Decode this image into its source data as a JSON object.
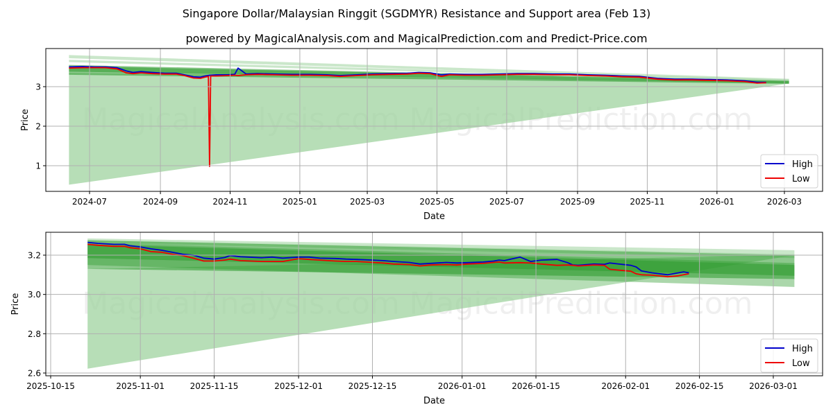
{
  "header": {
    "title": "Singapore Dollar/Malaysian Ringgit (SGDMYR) Resistance and Support area (Feb 13)",
    "subtitle": "powered by MagicalAnalysis.com and MagicalPrediction.com and Predict-Price.com"
  },
  "watermarks": [
    "MagicalAnalysis.com",
    "MagicalPrediction.com"
  ],
  "colors": {
    "high": "#0000cc",
    "low": "#ee0000",
    "band_dark": "#2e9a2e",
    "band_light": "#9fd39f",
    "grid": "#b0b0b0"
  },
  "chart_data": [
    {
      "type": "line",
      "title": "",
      "xlabel": "Date",
      "ylabel": "Price",
      "grid": true,
      "legend_position": "lower right",
      "legend": [
        "High",
        "Low"
      ],
      "xticks": [
        "2024-07",
        "2024-09",
        "2024-11",
        "2025-01",
        "2025-03",
        "2025-05",
        "2025-07",
        "2025-09",
        "2025-11",
        "2026-01",
        "2026-03"
      ],
      "yticks": [
        "1",
        "2",
        "3"
      ],
      "ylim": [
        0.35,
        3.95
      ],
      "xrange": [
        "2024-05-20",
        "2026-04-04"
      ],
      "series": [
        {
          "name": "High",
          "x": [
            "2024-06-13",
            "2024-06-25",
            "2024-07-05",
            "2024-07-15",
            "2024-07-25",
            "2024-08-02",
            "2024-08-08",
            "2024-08-15",
            "2024-08-25",
            "2024-09-05",
            "2024-09-15",
            "2024-09-22",
            "2024-09-30",
            "2024-10-06",
            "2024-10-10",
            "2024-10-14",
            "2024-10-20",
            "2024-10-30",
            "2024-11-05",
            "2024-11-08",
            "2024-11-15",
            "2024-11-25",
            "2024-12-10",
            "2024-12-25",
            "2025-01-10",
            "2025-01-25",
            "2025-02-05",
            "2025-02-20",
            "2025-03-05",
            "2025-03-20",
            "2025-04-05",
            "2025-04-15",
            "2025-04-25",
            "2025-05-05",
            "2025-05-12",
            "2025-05-25",
            "2025-06-10",
            "2025-06-25",
            "2025-07-10",
            "2025-07-25",
            "2025-08-10",
            "2025-08-25",
            "2025-09-10",
            "2025-09-25",
            "2025-10-10",
            "2025-10-25",
            "2025-11-10",
            "2025-11-25",
            "2025-12-10",
            "2025-12-25",
            "2026-01-10",
            "2026-01-25",
            "2026-02-05",
            "2026-02-13"
          ],
          "values": [
            3.5,
            3.51,
            3.5,
            3.5,
            3.48,
            3.4,
            3.36,
            3.38,
            3.36,
            3.34,
            3.34,
            3.3,
            3.25,
            3.24,
            3.27,
            3.29,
            3.3,
            3.3,
            3.31,
            3.47,
            3.32,
            3.33,
            3.32,
            3.31,
            3.31,
            3.3,
            3.28,
            3.3,
            3.32,
            3.33,
            3.34,
            3.36,
            3.35,
            3.3,
            3.32,
            3.31,
            3.31,
            3.32,
            3.33,
            3.33,
            3.32,
            3.32,
            3.3,
            3.29,
            3.27,
            3.26,
            3.21,
            3.19,
            3.19,
            3.18,
            3.17,
            3.15,
            3.11,
            3.11
          ]
        },
        {
          "name": "Low",
          "x": [
            "2024-06-13",
            "2024-06-25",
            "2024-07-05",
            "2024-07-15",
            "2024-07-25",
            "2024-08-02",
            "2024-08-08",
            "2024-08-15",
            "2024-08-25",
            "2024-09-05",
            "2024-09-15",
            "2024-09-22",
            "2024-09-30",
            "2024-10-06",
            "2024-10-10",
            "2024-10-13",
            "2024-10-14",
            "2024-10-15",
            "2024-10-20",
            "2024-10-30",
            "2024-11-05",
            "2024-11-08",
            "2024-11-15",
            "2024-11-25",
            "2024-12-10",
            "2024-12-25",
            "2025-01-10",
            "2025-01-25",
            "2025-02-05",
            "2025-02-20",
            "2025-03-05",
            "2025-03-20",
            "2025-04-05",
            "2025-04-15",
            "2025-04-25",
            "2025-05-05",
            "2025-05-12",
            "2025-05-25",
            "2025-06-10",
            "2025-06-25",
            "2025-07-10",
            "2025-07-25",
            "2025-08-10",
            "2025-08-25",
            "2025-09-10",
            "2025-09-25",
            "2025-10-10",
            "2025-10-25",
            "2025-11-10",
            "2025-11-25",
            "2025-12-10",
            "2025-12-25",
            "2026-01-10",
            "2026-01-25",
            "2026-02-05",
            "2026-02-13"
          ],
          "values": [
            3.47,
            3.48,
            3.48,
            3.48,
            3.45,
            3.35,
            3.33,
            3.35,
            3.33,
            3.32,
            3.32,
            3.28,
            3.22,
            3.21,
            3.24,
            3.26,
            0.98,
            3.27,
            3.27,
            3.28,
            3.29,
            3.28,
            3.3,
            3.31,
            3.3,
            3.29,
            3.29,
            3.28,
            3.26,
            3.28,
            3.3,
            3.31,
            3.32,
            3.34,
            3.33,
            3.26,
            3.3,
            3.29,
            3.29,
            3.3,
            3.31,
            3.31,
            3.3,
            3.3,
            3.28,
            3.27,
            3.25,
            3.24,
            3.19,
            3.17,
            3.17,
            3.16,
            3.15,
            3.13,
            3.09,
            3.1
          ]
        }
      ],
      "bands": [
        {
          "kind": "support_wedge",
          "start": {
            "x": "2024-06-13",
            "top": 3.35,
            "bottom": 0.52
          },
          "end": {
            "x": "2026-03-05",
            "top": 3.12,
            "bottom": 3.08
          },
          "color": "#9fd39f",
          "opacity": 0.75
        },
        {
          "kind": "resistance",
          "start": {
            "x": "2024-06-13",
            "top": 3.8,
            "bottom": 3.72
          },
          "end": {
            "x": "2026-03-05",
            "top": 3.2,
            "bottom": 3.15
          },
          "color": "#9fd39f",
          "opacity": 0.55
        },
        {
          "kind": "resistance",
          "start": {
            "x": "2024-06-13",
            "top": 3.68,
            "bottom": 3.62
          },
          "end": {
            "x": "2026-03-05",
            "top": 3.18,
            "bottom": 3.13
          },
          "color": "#9fd39f",
          "opacity": 0.55
        },
        {
          "kind": "core",
          "start": {
            "x": "2024-06-13",
            "top": 3.55,
            "bottom": 3.3
          },
          "end": {
            "x": "2026-03-05",
            "top": 3.15,
            "bottom": 3.07
          },
          "color": "#2e9a2e",
          "opacity": 0.55
        },
        {
          "kind": "core",
          "start": {
            "x": "2024-06-13",
            "top": 3.52,
            "bottom": 3.38
          },
          "end": {
            "x": "2026-03-05",
            "top": 3.14,
            "bottom": 3.09
          },
          "color": "#2e9a2e",
          "opacity": 0.55
        }
      ]
    },
    {
      "type": "line",
      "title": "",
      "xlabel": "Date",
      "ylabel": "Price",
      "grid": true,
      "legend_position": "lower right",
      "legend": [
        "High",
        "Low"
      ],
      "xticks": [
        "2025-10-15",
        "2025-11-01",
        "2025-11-15",
        "2025-12-01",
        "2025-12-15",
        "2026-01-01",
        "2026-01-15",
        "2026-02-01",
        "2026-02-15",
        "2026-03-01"
      ],
      "yticks": [
        "2.6",
        "2.8",
        "3.0",
        "3.2"
      ],
      "ylim": [
        2.585,
        3.315
      ],
      "xrange": [
        "2025-10-14",
        "2026-03-10"
      ],
      "series": [
        {
          "name": "High",
          "x": [
            "2025-10-22",
            "2025-10-24",
            "2025-10-27",
            "2025-10-29",
            "2025-10-30",
            "2025-11-01",
            "2025-11-03",
            "2025-11-05",
            "2025-11-07",
            "2025-11-09",
            "2025-11-11",
            "2025-11-13",
            "2025-11-15",
            "2025-11-17",
            "2025-11-18",
            "2025-11-20",
            "2025-11-24",
            "2025-11-26",
            "2025-11-28",
            "2025-12-01",
            "2025-12-03",
            "2025-12-05",
            "2025-12-08",
            "2025-12-10",
            "2025-12-12",
            "2025-12-15",
            "2025-12-17",
            "2025-12-19",
            "2025-12-22",
            "2025-12-24",
            "2025-12-26",
            "2025-12-29",
            "2025-12-31",
            "2026-01-02",
            "2026-01-05",
            "2026-01-07",
            "2026-01-08",
            "2026-01-09",
            "2026-01-12",
            "2026-01-14",
            "2026-01-16",
            "2026-01-19",
            "2026-01-21",
            "2026-01-22",
            "2026-01-23",
            "2026-01-26",
            "2026-01-28",
            "2026-01-29",
            "2026-02-02",
            "2026-02-03",
            "2026-02-04",
            "2026-02-06",
            "2026-02-09",
            "2026-02-11",
            "2026-02-12",
            "2026-02-13"
          ],
          "values": [
            3.265,
            3.26,
            3.255,
            3.255,
            3.248,
            3.242,
            3.232,
            3.225,
            3.215,
            3.205,
            3.2,
            3.185,
            3.18,
            3.188,
            3.198,
            3.192,
            3.187,
            3.19,
            3.185,
            3.19,
            3.19,
            3.185,
            3.183,
            3.18,
            3.178,
            3.175,
            3.172,
            3.168,
            3.163,
            3.155,
            3.158,
            3.163,
            3.16,
            3.162,
            3.165,
            3.17,
            3.175,
            3.172,
            3.19,
            3.168,
            3.175,
            3.178,
            3.162,
            3.15,
            3.148,
            3.155,
            3.153,
            3.16,
            3.148,
            3.14,
            3.12,
            3.11,
            3.1,
            3.11,
            3.115,
            3.11
          ]
        },
        {
          "name": "Low",
          "x": [
            "2025-10-22",
            "2025-10-24",
            "2025-10-27",
            "2025-10-29",
            "2025-10-30",
            "2025-11-01",
            "2025-11-03",
            "2025-11-05",
            "2025-11-07",
            "2025-11-09",
            "2025-11-11",
            "2025-11-13",
            "2025-11-15",
            "2025-11-17",
            "2025-11-18",
            "2025-11-20",
            "2025-11-24",
            "2025-11-26",
            "2025-11-28",
            "2025-12-01",
            "2025-12-03",
            "2025-12-05",
            "2025-12-08",
            "2025-12-10",
            "2025-12-12",
            "2025-12-15",
            "2025-12-17",
            "2025-12-19",
            "2025-12-22",
            "2025-12-24",
            "2025-12-26",
            "2025-12-29",
            "2025-12-31",
            "2026-01-02",
            "2026-01-05",
            "2026-01-07",
            "2026-01-08",
            "2026-01-09",
            "2026-01-12",
            "2026-01-14",
            "2026-01-16",
            "2026-01-19",
            "2026-01-21",
            "2026-01-22",
            "2026-01-23",
            "2026-01-26",
            "2026-01-28",
            "2026-01-29",
            "2026-02-02",
            "2026-02-03",
            "2026-02-04",
            "2026-02-06",
            "2026-02-09",
            "2026-02-11",
            "2026-02-12",
            "2026-02-13"
          ],
          "values": [
            3.255,
            3.25,
            3.245,
            3.245,
            3.238,
            3.232,
            3.218,
            3.215,
            3.205,
            3.198,
            3.185,
            3.17,
            3.17,
            3.175,
            3.18,
            3.172,
            3.168,
            3.168,
            3.168,
            3.182,
            3.178,
            3.175,
            3.17,
            3.168,
            3.168,
            3.163,
            3.16,
            3.155,
            3.152,
            3.145,
            3.15,
            3.152,
            3.15,
            3.155,
            3.158,
            3.163,
            3.165,
            3.16,
            3.162,
            3.16,
            3.155,
            3.148,
            3.15,
            3.148,
            3.145,
            3.15,
            3.148,
            3.128,
            3.118,
            3.105,
            3.1,
            3.098,
            3.09,
            3.095,
            3.1,
            3.105
          ]
        }
      ],
      "bands": [
        {
          "kind": "support_wedge",
          "start": {
            "x": "2025-10-22",
            "top": 3.13,
            "bottom": 2.622
          },
          "end": {
            "x": "2026-03-05",
            "top": 3.2,
            "bottom": 3.2
          },
          "color": "#9fd39f",
          "opacity": 0.75
        },
        {
          "kind": "resistance",
          "start": {
            "x": "2025-10-22",
            "top": 3.285,
            "bottom": 3.27
          },
          "end": {
            "x": "2026-03-05",
            "top": 3.225,
            "bottom": 3.2
          },
          "color": "#9fd39f",
          "opacity": 0.55
        },
        {
          "kind": "resistance",
          "start": {
            "x": "2025-10-22",
            "top": 3.278,
            "bottom": 3.262
          },
          "end": {
            "x": "2026-03-05",
            "top": 3.205,
            "bottom": 3.185
          },
          "color": "#9fd39f",
          "opacity": 0.55
        },
        {
          "kind": "core",
          "start": {
            "x": "2025-10-22",
            "top": 3.275,
            "bottom": 3.13
          },
          "end": {
            "x": "2026-03-05",
            "top": 3.2,
            "bottom": 3.078
          },
          "color": "#2e9a2e",
          "opacity": 0.55
        },
        {
          "kind": "core",
          "start": {
            "x": "2025-10-22",
            "top": 3.262,
            "bottom": 3.15
          },
          "end": {
            "x": "2026-03-05",
            "top": 3.16,
            "bottom": 3.038
          },
          "color": "#2e9a2e",
          "opacity": 0.4
        },
        {
          "kind": "core",
          "start": {
            "x": "2025-10-22",
            "top": 3.255,
            "bottom": 3.185
          },
          "end": {
            "x": "2026-03-05",
            "top": 3.15,
            "bottom": 3.095
          },
          "color": "#2e9a2e",
          "opacity": 0.55
        }
      ]
    }
  ]
}
